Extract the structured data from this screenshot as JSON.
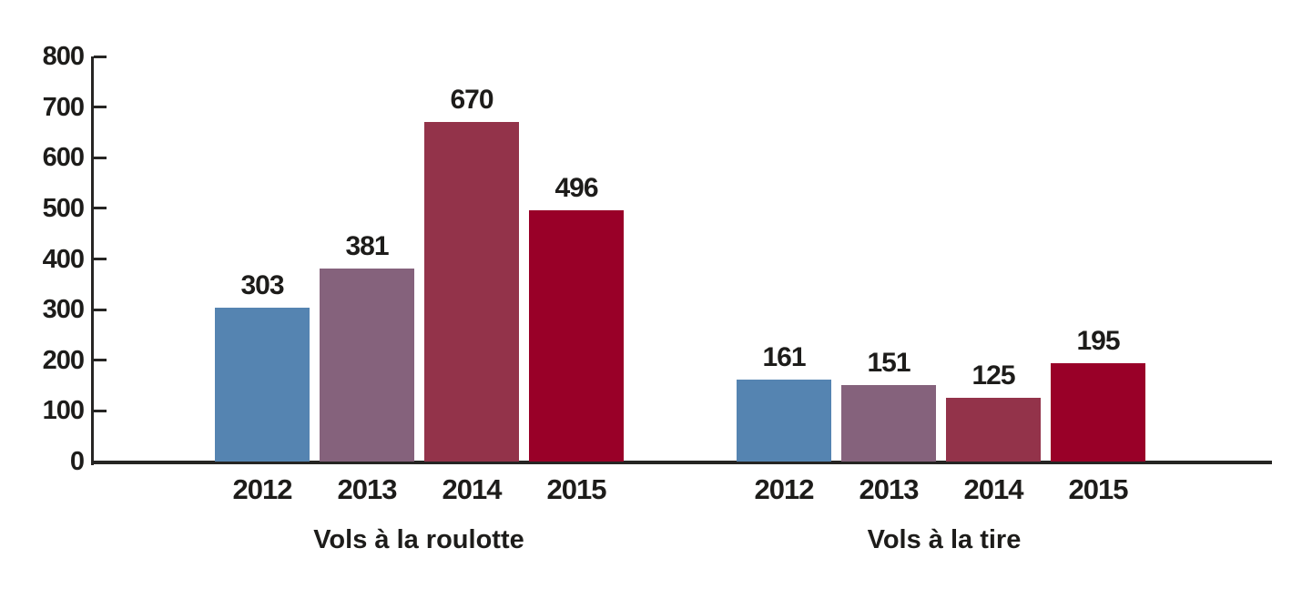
{
  "chart_data": {
    "type": "bar",
    "title": "",
    "categories": [
      "2012",
      "2013",
      "2014",
      "2015"
    ],
    "groups": [
      {
        "label": "Vols à la roulotte",
        "values": [
          303,
          381,
          670,
          496
        ]
      },
      {
        "label": "Vols à la tire",
        "values": [
          161,
          151,
          125,
          195
        ]
      }
    ],
    "bar_colors_by_year": [
      "#5584b1",
      "#85627c",
      "#93334a",
      "#990028"
    ],
    "ylim": [
      0,
      800
    ],
    "yticks": [
      0,
      100,
      200,
      300,
      400,
      500,
      600,
      700,
      800
    ],
    "grid": false,
    "legend": "none",
    "value_labels": true,
    "axis_color": "#262523",
    "text_color": "#1d1c1a",
    "background_color": "#ffffff"
  }
}
